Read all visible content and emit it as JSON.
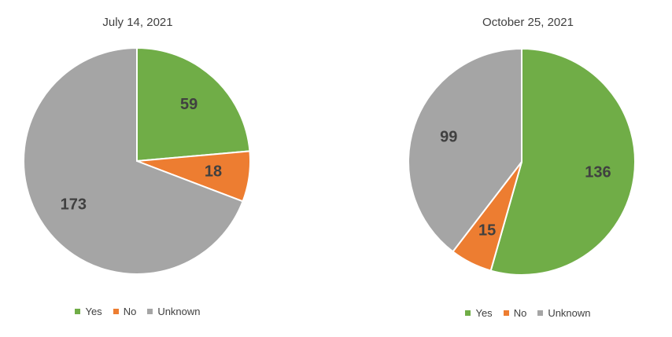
{
  "chart_data": [
    {
      "type": "pie",
      "title": "July 14, 2021",
      "categories": [
        "Yes",
        "No",
        "Unknown"
      ],
      "values": [
        59,
        18,
        173
      ],
      "colors": [
        "#70ad47",
        "#ed7d31",
        "#a5a5a5"
      ],
      "legend": "bottom"
    },
    {
      "type": "pie",
      "title": "October 25, 2021",
      "categories": [
        "Yes",
        "No",
        "Unknown"
      ],
      "values": [
        136,
        15,
        99
      ],
      "colors": [
        "#70ad47",
        "#ed7d31",
        "#a5a5a5"
      ],
      "legend": "bottom"
    }
  ]
}
